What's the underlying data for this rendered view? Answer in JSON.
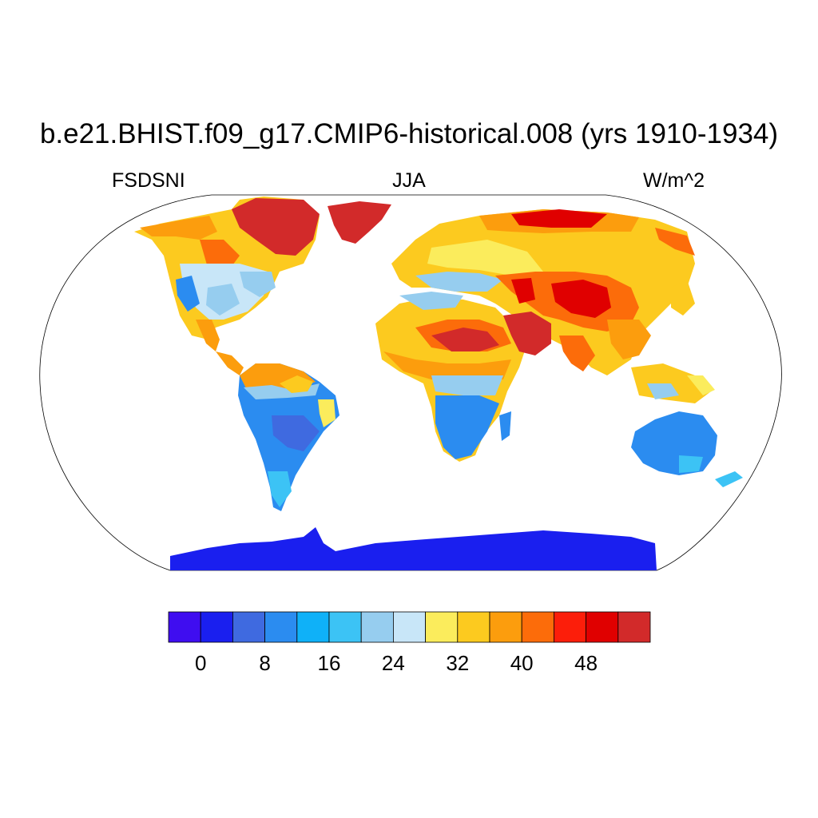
{
  "title": "b.e21.BHIST.f09_g17.CMIP6-historical.008 (yrs 1910-1934)",
  "subtitle": {
    "left": "FSDSNI",
    "center": "JJA",
    "right": "W/m^2"
  },
  "colorbar": {
    "colors": [
      "#3f0df0",
      "#1a1fef",
      "#3f6ae0",
      "#2b8cf0",
      "#0fb1f8",
      "#3cc3f5",
      "#96cdef",
      "#c8e6f8",
      "#fbec5c",
      "#fcca1f",
      "#fc9d0d",
      "#fc6c0a",
      "#fc1e0a",
      "#e00000",
      "#d22a2a"
    ],
    "tick_labels": [
      "0",
      "8",
      "16",
      "24",
      "32",
      "40",
      "48"
    ],
    "tick_values": [
      0,
      8,
      16,
      24,
      32,
      40,
      48
    ],
    "levels_start": -4,
    "level_step": 4
  }
}
